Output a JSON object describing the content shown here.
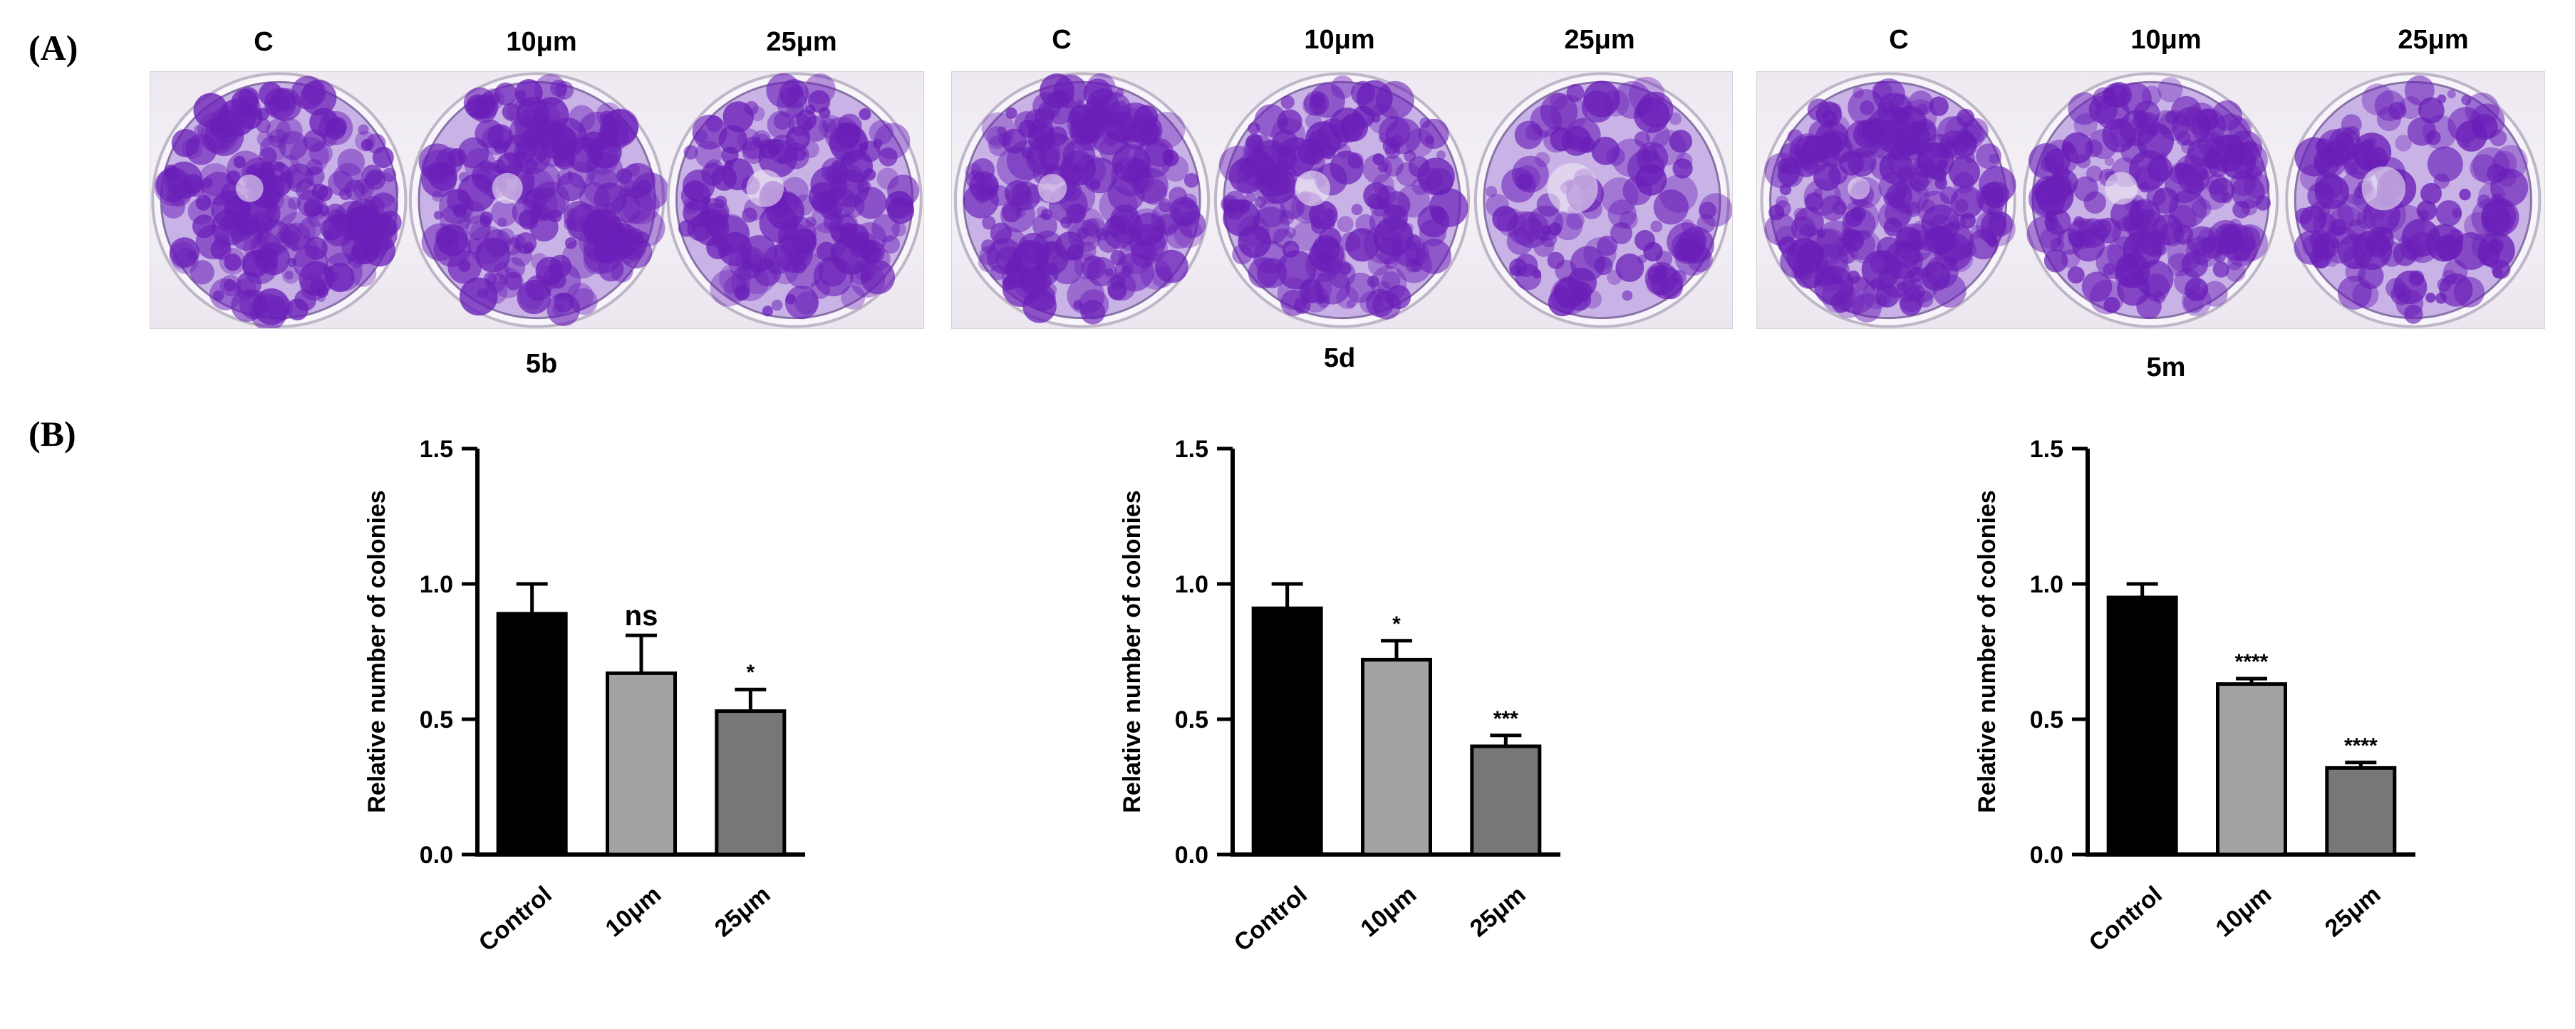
{
  "panels": {
    "a_label": "(A)",
    "b_label": "(B)"
  },
  "plates": [
    {
      "name": "5b",
      "wells": [
        "C",
        "10μm",
        "25μm"
      ],
      "densities": [
        0.8,
        0.75,
        0.65
      ]
    },
    {
      "name": "5d",
      "wells": [
        "C",
        "10μm",
        "25μm"
      ],
      "densities": [
        0.78,
        0.68,
        0.45
      ]
    },
    {
      "name": "5m",
      "wells": [
        "C",
        "10μm",
        "25μm"
      ],
      "densities": [
        0.88,
        0.72,
        0.55
      ]
    }
  ],
  "colors": {
    "stain": "#6a1fb8",
    "stain_light": "#c9b3e6",
    "bar_control": "#000000",
    "bar_10": "#a3a3a3",
    "bar_25": "#777777"
  },
  "chart_data": [
    {
      "type": "bar",
      "categories": [
        "Control",
        "10μm",
        "25μm"
      ],
      "values": [
        0.89,
        0.67,
        0.53
      ],
      "errors": [
        0.11,
        0.14,
        0.08
      ],
      "significance": [
        "",
        "ns",
        "*"
      ],
      "xlabel": "",
      "ylabel": "Relative number of colonies",
      "ylim": [
        0,
        1.5
      ],
      "yticks": [
        "0.0",
        "0.5",
        "1.0",
        "1.5"
      ]
    },
    {
      "type": "bar",
      "categories": [
        "Control",
        "10μm",
        "25μm"
      ],
      "values": [
        0.91,
        0.72,
        0.4
      ],
      "errors": [
        0.09,
        0.07,
        0.04
      ],
      "significance": [
        "",
        "*",
        "***"
      ],
      "xlabel": "",
      "ylabel": "Relative number of colonies",
      "ylim": [
        0,
        1.5
      ],
      "yticks": [
        "0.0",
        "0.5",
        "1.0",
        "1.5"
      ]
    },
    {
      "type": "bar",
      "categories": [
        "Control",
        "10μm",
        "25μm"
      ],
      "values": [
        0.95,
        0.63,
        0.32
      ],
      "errors": [
        0.05,
        0.02,
        0.02
      ],
      "significance": [
        "",
        "****",
        "****"
      ],
      "xlabel": "",
      "ylabel": "Relative number of colonies",
      "ylim": [
        0,
        1.5
      ],
      "yticks": [
        "0.0",
        "0.5",
        "1.0",
        "1.5"
      ]
    }
  ]
}
